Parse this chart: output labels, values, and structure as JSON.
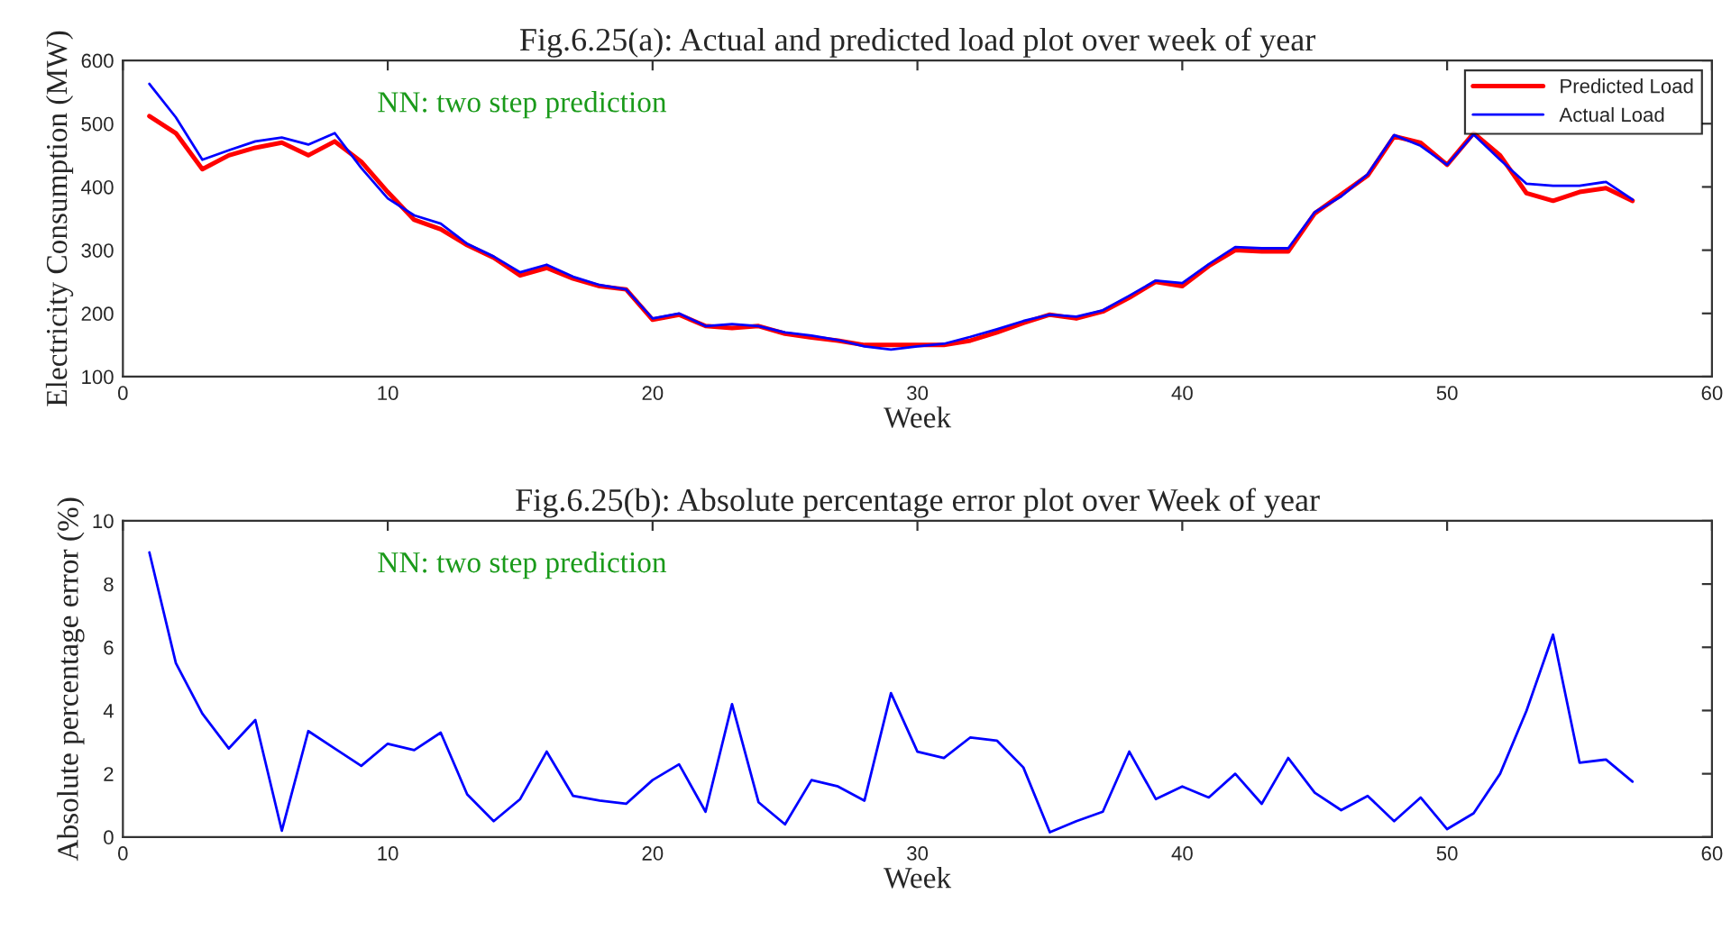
{
  "chart_data": [
    {
      "type": "line",
      "title": "Fig.6.25(a): Actual and predicted load plot over week of year",
      "xlabel": "Week",
      "ylabel": "Electricity Consumption (MW)",
      "annotations": [
        "NN: two step prediction"
      ],
      "x": [
        1,
        2,
        3,
        4,
        5,
        6,
        7,
        8,
        9,
        10,
        11,
        12,
        13,
        14,
        15,
        16,
        17,
        18,
        19,
        20,
        21,
        22,
        23,
        24,
        25,
        26,
        27,
        28,
        29,
        30,
        31,
        32,
        33,
        34,
        35,
        36,
        37,
        38,
        39,
        40,
        41,
        42,
        43,
        44,
        45,
        46,
        47,
        48,
        49,
        50,
        51,
        52,
        53,
        54,
        55,
        56,
        57
      ],
      "series": [
        {
          "name": "Predicted Load",
          "color": "#ff0000",
          "values": [
            512,
            485,
            428,
            450,
            462,
            470,
            450,
            472,
            440,
            392,
            348,
            333,
            308,
            288,
            260,
            272,
            255,
            243,
            238,
            190,
            198,
            180,
            177,
            180,
            168,
            162,
            157,
            150,
            150,
            150,
            150,
            157,
            170,
            185,
            198,
            192,
            203,
            225,
            250,
            243,
            275,
            300,
            298,
            298,
            358,
            388,
            418,
            480,
            470,
            435,
            485,
            450,
            390,
            378,
            392,
            398,
            378
          ]
        },
        {
          "name": "Actual Load",
          "color": "#0000ff",
          "values": [
            563,
            510,
            443,
            458,
            472,
            478,
            467,
            485,
            430,
            382,
            355,
            342,
            310,
            290,
            265,
            277,
            258,
            245,
            238,
            192,
            200,
            180,
            183,
            180,
            170,
            165,
            158,
            148,
            143,
            148,
            152,
            163,
            175,
            188,
            198,
            195,
            205,
            228,
            252,
            248,
            278,
            305,
            303,
            303,
            360,
            385,
            420,
            482,
            465,
            435,
            483,
            443,
            405,
            402,
            402,
            408,
            380
          ]
        }
      ],
      "xlim": [
        0,
        60
      ],
      "xticks": [
        0,
        10,
        20,
        30,
        40,
        50,
        60
      ],
      "ylim": [
        100,
        600
      ],
      "yticks": [
        100,
        200,
        300,
        400,
        500,
        600
      ],
      "legend": "top right",
      "grid": false,
      "marker": "none",
      "line_style": "solid"
    },
    {
      "type": "line",
      "title": "Fig.6.25(b): Absolute percentage error plot over Week of year",
      "xlabel": "Week",
      "ylabel": "Absolute percentage error (%)",
      "annotations": [
        "NN: two step prediction"
      ],
      "x": [
        1,
        2,
        3,
        4,
        5,
        6,
        7,
        8,
        9,
        10,
        11,
        12,
        13,
        14,
        15,
        16,
        17,
        18,
        19,
        20,
        21,
        22,
        23,
        24,
        25,
        26,
        27,
        28,
        29,
        30,
        31,
        32,
        33,
        34,
        35,
        36,
        37,
        38,
        39,
        40,
        41,
        42,
        43,
        44,
        45,
        46,
        47,
        48,
        49,
        50,
        51,
        52,
        53,
        54,
        55,
        56,
        57
      ],
      "series": [
        {
          "color": "#0000ff",
          "values": [
            9.0,
            5.5,
            3.9,
            2.8,
            3.7,
            0.2,
            3.35,
            2.8,
            2.25,
            2.95,
            2.75,
            3.3,
            1.35,
            0.5,
            1.2,
            2.7,
            1.3,
            1.15,
            1.05,
            1.8,
            2.3,
            0.8,
            4.2,
            1.1,
            0.4,
            1.8,
            1.6,
            1.15,
            4.55,
            2.7,
            2.5,
            3.15,
            3.05,
            2.2,
            0.15,
            0.5,
            0.8,
            2.7,
            1.2,
            1.6,
            1.25,
            2.0,
            1.05,
            2.5,
            1.4,
            0.85,
            1.3,
            0.5,
            1.25,
            0.25,
            0.75,
            2.0,
            4.0,
            6.4,
            2.35,
            2.45,
            1.75
          ]
        }
      ],
      "xlim": [
        0,
        60
      ],
      "xticks": [
        0,
        10,
        20,
        30,
        40,
        50,
        60
      ],
      "ylim": [
        0,
        10
      ],
      "yticks": [
        0,
        2,
        4,
        6,
        8,
        10
      ],
      "legend": false,
      "grid": false,
      "marker": "none",
      "line_style": "solid"
    }
  ]
}
